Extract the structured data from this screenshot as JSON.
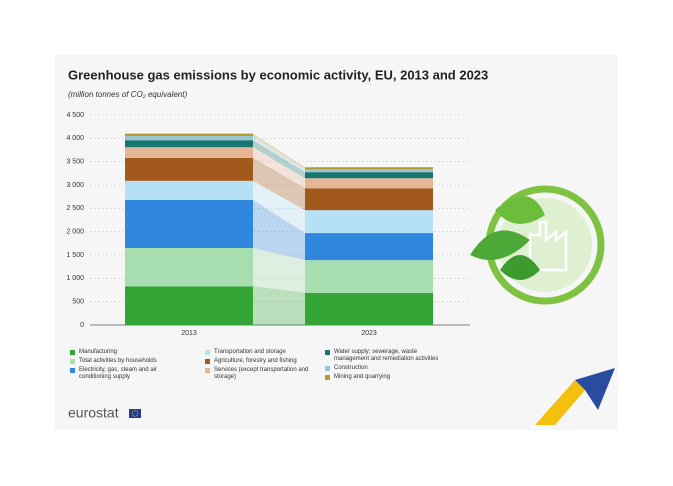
{
  "chart_data": {
    "type": "stacked_bar",
    "title": "Greenhouse gas emissions by economic activity, EU, 2013 and 2023",
    "subtitle": "(million tonnes of CO₂ equivalent)",
    "categories": [
      "2013",
      "2023"
    ],
    "ylim": [
      0,
      4500
    ],
    "yticks": [
      0,
      500,
      {
        "value": 1000,
        "label": "1 000"
      },
      {
        "value": 1500,
        "label": "1 500"
      },
      {
        "value": 2000,
        "label": "2 000"
      },
      {
        "value": 2500,
        "label": "2 500"
      },
      {
        "value": 3000,
        "label": "3 000"
      },
      {
        "value": 3500,
        "label": "3 500"
      },
      {
        "value": 4000,
        "label": "4 000"
      },
      {
        "value": 4500,
        "label": "4 500"
      }
    ],
    "grid": true,
    "series": [
      {
        "name": "Manufacturing",
        "color": "#33a537",
        "values": [
          830,
          690
        ]
      },
      {
        "name": "Total activities by households",
        "color": "#a6deb0",
        "values": [
          820,
          700
        ]
      },
      {
        "name": "Electricity, gas, steam and air conditioning supply",
        "color": "#2f87de",
        "values": [
          1030,
          580
        ]
      },
      {
        "name": "Transportation and storage",
        "color": "#b5e1f7",
        "values": [
          410,
          490
        ]
      },
      {
        "name": "Agriculture, forestry and fishing",
        "color": "#a2591c",
        "values": [
          490,
          470
        ]
      },
      {
        "name": "Services (except transportation and storage)",
        "color": "#e6b595",
        "values": [
          230,
          215
        ]
      },
      {
        "name": "Water supply; sewerage, waste management and remediation activities",
        "color": "#17766d",
        "values": [
          150,
          130
        ]
      },
      {
        "name": "Construction",
        "color": "#98c6d6",
        "values": [
          90,
          60
        ]
      },
      {
        "name": "Mining and quarrying",
        "color": "#b79a2c",
        "values": [
          50,
          45
        ]
      }
    ]
  },
  "logo": "eurostat"
}
